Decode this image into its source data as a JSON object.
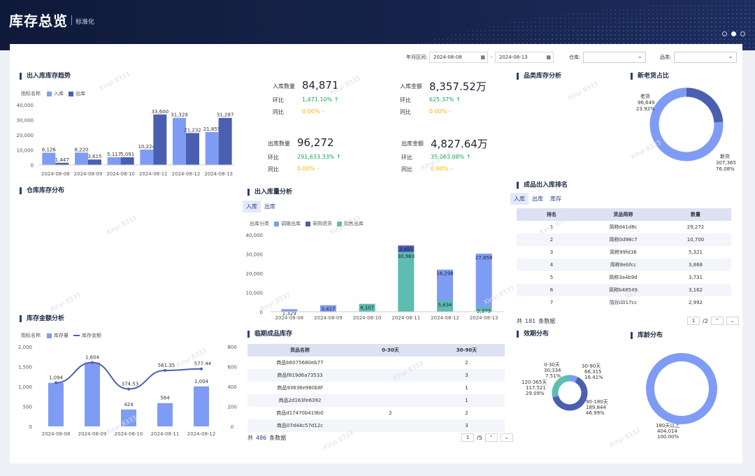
{
  "header": {
    "title": "库存总览",
    "subtitle": "标准化"
  },
  "filters": {
    "date_label": "年月区间:",
    "date_start": "2024-08-08",
    "date_sep": "-",
    "date_end": "2024-08-13",
    "warehouse_label": "仓库:",
    "category_label": "品类:"
  },
  "sections": {
    "trend": "出入库库存趋势",
    "warehouse_dist": "仓库库存分布",
    "amount": "库存金额分析",
    "io_analysis": "出入库量分析",
    "expiring": "临期成品库存",
    "category_analysis": "品类库存分析",
    "new_old": "新老货占比",
    "ranking": "成品出入库排名",
    "expiry_dist": "效期分布",
    "age_dist": "库龄分布"
  },
  "kpi": {
    "in_qty": {
      "label": "入库数量",
      "value": "84,871",
      "hb_label": "环比",
      "hb": "1,471.10%",
      "tb_label": "同比",
      "tb": "0.00%"
    },
    "in_amt": {
      "label": "入库金额",
      "value": "8,357.52万",
      "hb_label": "环比",
      "hb": "625.37%",
      "tb_label": "同比",
      "tb": "0.00%"
    },
    "out_qty": {
      "label": "出库数量",
      "value": "96,272",
      "hb_label": "环比",
      "hb": "291,633.33%",
      "tb_label": "同比",
      "tb": "0.00%"
    },
    "out_amt": {
      "label": "出库金额",
      "value": "4,827.64万",
      "hb_label": "环比",
      "hb": "35,063.08%",
      "tb_label": "同比",
      "tb": "0.00%"
    }
  },
  "legend": {
    "metric_name": "指标名称",
    "in": "入库",
    "out": "出库",
    "stock_qty": "库存量",
    "stock_amt": "库存金额",
    "out_type": "出库分类",
    "transfer": "调拨出库",
    "purchase_return": "采购退货",
    "sales": "销售出库"
  },
  "tabs": {
    "in": "入库",
    "out": "出库",
    "stock": "库存"
  },
  "expiring_table": {
    "headers": [
      "货品名称",
      "0-30天",
      "30-90天"
    ],
    "rows": [
      [
        "商品b6075680eb77",
        "",
        "2"
      ],
      [
        "商品f819d6a73533",
        "",
        "3"
      ],
      [
        "商品93636e980b8f",
        "",
        "1"
      ],
      [
        "商品2d163fe6392",
        "",
        "1"
      ],
      [
        "商品d17470b419b0",
        "2",
        "2"
      ],
      [
        "商品07d44c57d12c",
        "",
        "3"
      ]
    ],
    "total_prefix": "共",
    "total": "486",
    "total_suffix": "条数据",
    "page": "1",
    "pages": "/5"
  },
  "ranking_table": {
    "headers": [
      "排名",
      "货品简称",
      "数量"
    ],
    "rows": [
      [
        "1",
        "简称d41d8c",
        "29,272"
      ],
      [
        "2",
        "简称0d98c7",
        "10,700"
      ],
      [
        "3",
        "简称99fd36",
        "5,321"
      ],
      [
        "4",
        "简称8ebfcc",
        "3,868"
      ],
      [
        "5",
        "简称3a4b9d",
        "3,731"
      ],
      [
        "6",
        "简称b48549",
        "3,162"
      ],
      [
        "7",
        "简称d017cc",
        "2,992"
      ]
    ],
    "total_prefix": "共",
    "total": "181",
    "total_suffix": "条数据",
    "page": "1",
    "pages": "/2"
  },
  "watermark": "Xinyi 8333",
  "chart_data": [
    {
      "id": "trend",
      "type": "bar",
      "categories": [
        "2024-08-08",
        "2024-08-09",
        "2024-08-10",
        "2024-08-11",
        "2024-08-12",
        "2024-08-13"
      ],
      "series": [
        {
          "name": "入库",
          "color": "#7f9cf5",
          "values": [
            8126,
            8220,
            5117,
            10224,
            31329,
            21855
          ]
        },
        {
          "name": "出库",
          "color": "#4a5fb0",
          "values": [
            1447,
            3615,
            5091,
            33600,
            21232,
            31287
          ]
        }
      ],
      "yticks": [
        "0",
        "10,000",
        "20,000",
        "30,000",
        "40,000"
      ],
      "ylim": [
        0,
        40000
      ],
      "labels": [
        [
          "8,126",
          "8,220",
          "5,117",
          "10,224",
          "31,329",
          "21,855"
        ],
        [
          "1,447",
          "3,615",
          "5,091",
          "33,600",
          "21,232",
          "31,287"
        ]
      ]
    },
    {
      "id": "io",
      "type": "bar",
      "stacked": true,
      "categories": [
        "2024-08-08",
        "2024-08-09",
        "2024-08-10",
        "2024-08-11",
        "2024-08-12",
        "2024-08-13"
      ],
      "series": [
        {
          "name": "调拨出库",
          "color": "#7f9cf5",
          "values": [
            1329,
            3417,
            0,
            0,
            16298,
            27858
          ]
        },
        {
          "name": "采购退货",
          "color": "#4a5fb0",
          "values": [
            0,
            0,
            0,
            3493,
            0,
            0
          ]
        },
        {
          "name": "销售出库",
          "color": "#5cbdb0",
          "values": [
            0,
            0,
            4107,
            30983,
            5634,
            2373
          ]
        }
      ],
      "yticks": [
        "0",
        "10,000",
        "20,000",
        "30,000",
        "40,000"
      ],
      "ylim": [
        0,
        40000
      ],
      "labels": [
        "1,329",
        "3,417",
        "4,107",
        "30,983",
        "3,493",
        "16,298",
        "5,634",
        "27,858",
        "2,373"
      ]
    },
    {
      "id": "amount",
      "type": "bar",
      "categories": [
        "2024-08-08",
        "2024-08-09",
        "2024-08-10",
        "2024-08-11",
        "2024-08-12"
      ],
      "series": [
        {
          "name": "库存量",
          "color": "#7f9cf5",
          "values": [
            1094,
            1604,
            424,
            584,
            1004
          ]
        },
        {
          "name": "库存金额",
          "type": "line",
          "color": "#4a5fb0",
          "values": [
            null,
            null,
            374.53,
            561.35,
            577.44
          ]
        }
      ],
      "yticks_left": [
        "0",
        "500",
        "1,000",
        "1,500",
        "2,000"
      ],
      "yticks_right": [
        "0",
        "200",
        "400",
        "600",
        "800"
      ],
      "labels_bar": [
        "1,094",
        "1,604",
        "424",
        "584",
        "1,004"
      ],
      "labels_line": [
        "374.53",
        "561.35",
        "577.44"
      ]
    },
    {
      "id": "new_old",
      "type": "pie",
      "values": [
        {
          "name": "老货",
          "value": 96649,
          "pct": "23.92%",
          "label": "96,649"
        },
        {
          "name": "新货",
          "value": 307365,
          "pct": "76.08%",
          "label": "307,365"
        }
      ]
    },
    {
      "id": "expiry",
      "type": "pie",
      "values": [
        {
          "name": "0-30天",
          "value": 30334,
          "label": "30,334",
          "pct": "7.51%"
        },
        {
          "name": "30-90天",
          "value": 66315,
          "label": "66,315",
          "pct": "16.41%"
        },
        {
          "name": "90-180天",
          "value": 189844,
          "label": "189,844",
          "pct": "46.99%"
        },
        {
          "name": "120-365天",
          "value": 117521,
          "label": "117,521",
          "pct": "29.09%"
        }
      ]
    },
    {
      "id": "age",
      "type": "pie",
      "values": [
        {
          "name": "180天以上",
          "value": 404014,
          "label": "404,014",
          "pct": "100.00%"
        }
      ]
    }
  ]
}
